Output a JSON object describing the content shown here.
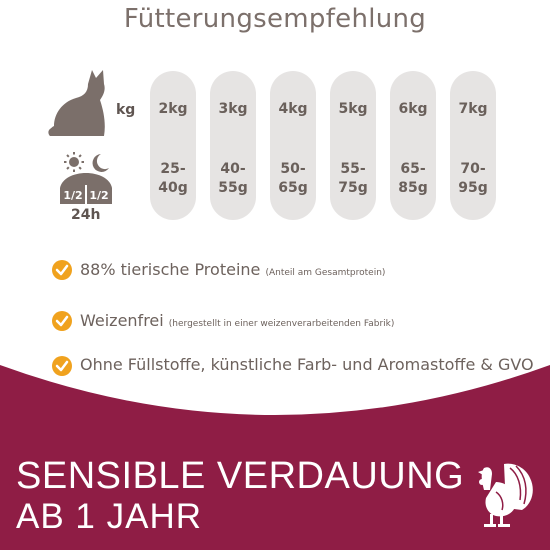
{
  "title": "Fütterungsempfehlung",
  "weight_unit": "kg",
  "portion_split": {
    "left": "1/2",
    "right": "1/2",
    "period": "24h"
  },
  "feeding": [
    {
      "weight": "2kg",
      "grams": "25-40g"
    },
    {
      "weight": "3kg",
      "grams": "40-55g"
    },
    {
      "weight": "4kg",
      "grams": "50-65g"
    },
    {
      "weight": "5kg",
      "grams": "55-75g"
    },
    {
      "weight": "6kg",
      "grams": "65-85g"
    },
    {
      "weight": "7kg",
      "grams": "70-95g"
    }
  ],
  "features": [
    {
      "text": "88% tierische Proteine",
      "note": "(Anteil am Gesamtprotein)"
    },
    {
      "text": "Weizenfrei",
      "note": "(hergestellt in einer weizenverarbeitenden Fabrik)"
    },
    {
      "text": "Ohne Füllstoffe, künstliche Farb- und Aromastoffe & GVO",
      "note": ""
    }
  ],
  "headline": "SENSIBLE VERDAUUNG",
  "subheadline": "AB 1 JAHR",
  "icons": {
    "cat": "cat-silhouette-icon",
    "daynight": "sun-moon-icon",
    "check": "orange-check-icon",
    "protein": "turkey-icon"
  },
  "colors": {
    "brand": "#8f1d45",
    "text": "#6d625d",
    "check": "#f0a21e",
    "pill": "#e6e4e3"
  }
}
